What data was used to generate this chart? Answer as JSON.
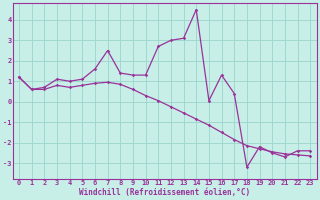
{
  "xlabel": "Windchill (Refroidissement éolien,°C)",
  "background_color": "#c8eee8",
  "grid_color": "#a0d8d0",
  "line_color": "#993399",
  "spine_color": "#993399",
  "x_hours": [
    0,
    1,
    2,
    3,
    4,
    5,
    6,
    7,
    8,
    9,
    10,
    11,
    12,
    13,
    14,
    15,
    16,
    17,
    18,
    19,
    20,
    21,
    22,
    23
  ],
  "windchill": [
    1.2,
    0.6,
    0.7,
    1.1,
    1.0,
    1.1,
    1.6,
    2.5,
    1.4,
    1.3,
    1.3,
    2.7,
    3.0,
    3.1,
    4.5,
    0.05,
    1.3,
    0.4,
    -3.2,
    -2.2,
    -2.5,
    -2.7,
    -2.4,
    -2.4
  ],
  "temperature": [
    1.2,
    0.6,
    0.6,
    0.8,
    0.7,
    0.8,
    0.9,
    0.95,
    0.85,
    0.6,
    0.3,
    0.05,
    -0.25,
    -0.55,
    -0.85,
    -1.15,
    -1.5,
    -1.85,
    -2.15,
    -2.3,
    -2.45,
    -2.55,
    -2.6,
    -2.65
  ],
  "ylim": [
    -3.8,
    4.8
  ],
  "xlim_min": -0.5,
  "xlim_max": 23.5,
  "yticks": [
    -3,
    -2,
    -1,
    0,
    1,
    2,
    3,
    4
  ],
  "xticks": [
    0,
    1,
    2,
    3,
    4,
    5,
    6,
    7,
    8,
    9,
    10,
    11,
    12,
    13,
    14,
    15,
    16,
    17,
    18,
    19,
    20,
    21,
    22,
    23
  ],
  "tick_fontsize": 5.0,
  "xlabel_fontsize": 5.5,
  "marker_size": 1.8,
  "line_width": 0.9
}
